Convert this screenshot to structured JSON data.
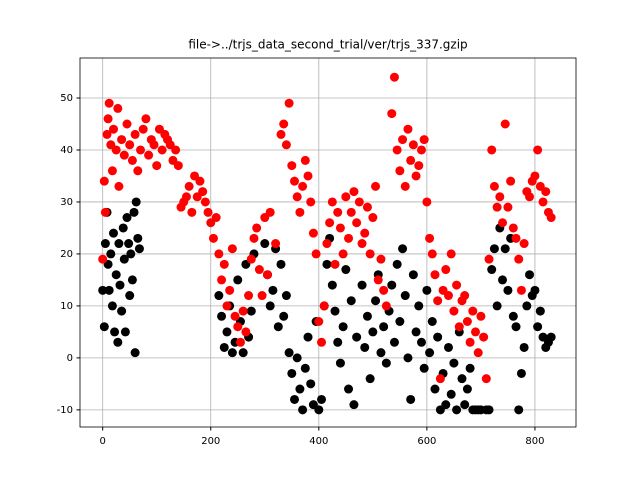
{
  "chart_data": {
    "type": "scatter",
    "title": "file->../trjs_data_second_trial/ver/trjs_337.gzip",
    "xlim": [
      -42,
      876
    ],
    "ylim": [
      -13.3,
      57.7
    ],
    "xticks": [
      0,
      200,
      400,
      600,
      800
    ],
    "yticks": [
      -10,
      0,
      10,
      20,
      30,
      40,
      50
    ],
    "grid": true,
    "series": [
      {
        "color": "#000000",
        "x": [
          0,
          3,
          5,
          8,
          10,
          12,
          15,
          18,
          20,
          22,
          25,
          28,
          30,
          32,
          35,
          38,
          40,
          42,
          45,
          48,
          50,
          52,
          55,
          58,
          60,
          62,
          65,
          68,
          215,
          220,
          225,
          230,
          235,
          240,
          245,
          250,
          255,
          260,
          265,
          270,
          275,
          280,
          300,
          305,
          310,
          315,
          320,
          325,
          330,
          335,
          340,
          345,
          350,
          355,
          360,
          365,
          370,
          375,
          380,
          385,
          390,
          395,
          400,
          405,
          410,
          415,
          420,
          425,
          430,
          435,
          440,
          445,
          450,
          455,
          460,
          465,
          470,
          480,
          485,
          490,
          495,
          500,
          505,
          510,
          515,
          520,
          525,
          530,
          535,
          540,
          545,
          550,
          555,
          560,
          565,
          570,
          575,
          580,
          585,
          590,
          595,
          600,
          605,
          610,
          615,
          620,
          625,
          630,
          635,
          640,
          645,
          650,
          655,
          660,
          665,
          670,
          675,
          680,
          685,
          690,
          695,
          700,
          710,
          715,
          720,
          725,
          730,
          735,
          740,
          745,
          750,
          755,
          760,
          765,
          770,
          775,
          780,
          785,
          790,
          795,
          800,
          805,
          810,
          815,
          820,
          825,
          830
        ],
        "values": [
          13,
          6,
          22,
          28,
          18,
          13,
          20,
          10,
          24,
          5,
          16,
          3,
          22,
          14,
          9,
          25,
          19,
          5,
          27,
          22,
          12,
          20,
          15,
          28,
          1,
          30,
          23,
          21,
          12,
          8,
          2,
          5,
          10,
          1,
          3,
          15,
          7,
          1,
          18,
          4,
          9,
          20,
          22,
          16,
          10,
          13,
          21,
          6,
          18,
          8,
          12,
          1,
          -3,
          -8,
          0,
          -6,
          -10,
          -2,
          4,
          -5,
          -9,
          7,
          -10,
          -8,
          10,
          18,
          23,
          14,
          9,
          3,
          -1,
          6,
          17,
          -6,
          11,
          -9,
          4,
          14,
          2,
          8,
          -4,
          5,
          11,
          16,
          1,
          6,
          -1,
          9,
          14,
          3,
          18,
          7,
          21,
          12,
          0,
          -8,
          16,
          5,
          10,
          3,
          -2,
          13,
          1,
          7,
          -6,
          4,
          -10,
          -3,
          -9,
          2,
          -7,
          -1,
          -10,
          5,
          -4,
          -9,
          -6,
          -2,
          -10,
          -10,
          -10,
          -10,
          -10,
          -10,
          17,
          21,
          10,
          25,
          15,
          21,
          13,
          23,
          8,
          6,
          -10,
          -3,
          2,
          10,
          16,
          12,
          13,
          6,
          9,
          4,
          2,
          3,
          4
        ]
      },
      {
        "color": "#ff0000",
        "x": [
          0,
          3,
          5,
          8,
          10,
          12,
          15,
          18,
          20,
          25,
          28,
          30,
          35,
          40,
          45,
          50,
          55,
          60,
          65,
          70,
          75,
          80,
          85,
          90,
          95,
          100,
          105,
          110,
          115,
          120,
          125,
          130,
          135,
          140,
          145,
          150,
          155,
          160,
          165,
          170,
          175,
          180,
          185,
          190,
          195,
          200,
          205,
          210,
          215,
          220,
          225,
          230,
          235,
          240,
          245,
          250,
          255,
          260,
          265,
          270,
          275,
          280,
          285,
          290,
          295,
          300,
          305,
          310,
          320,
          330,
          335,
          340,
          345,
          350,
          355,
          360,
          365,
          370,
          375,
          380,
          385,
          390,
          395,
          400,
          405,
          410,
          415,
          420,
          425,
          430,
          435,
          440,
          445,
          450,
          455,
          460,
          465,
          470,
          475,
          480,
          485,
          490,
          495,
          500,
          505,
          510,
          515,
          520,
          525,
          535,
          540,
          545,
          550,
          555,
          560,
          565,
          570,
          575,
          580,
          585,
          590,
          595,
          600,
          605,
          610,
          615,
          620,
          625,
          630,
          635,
          640,
          645,
          650,
          655,
          660,
          665,
          670,
          675,
          680,
          685,
          690,
          695,
          700,
          705,
          710,
          715,
          720,
          725,
          730,
          735,
          740,
          745,
          750,
          755,
          760,
          765,
          770,
          775,
          780,
          785,
          790,
          795,
          800,
          805,
          810,
          815,
          820,
          825,
          830
        ],
        "values": [
          19,
          34,
          28,
          43,
          46,
          49,
          41,
          36,
          44,
          40,
          48,
          33,
          42,
          39,
          45,
          41,
          38,
          43,
          36,
          40,
          44,
          46,
          39,
          42,
          41,
          37,
          44,
          40,
          43,
          42,
          41,
          38,
          40,
          37,
          29,
          30,
          31,
          33,
          28,
          35,
          31,
          34,
          32,
          30,
          28,
          26,
          23,
          27,
          20,
          15,
          18,
          10,
          13,
          21,
          8,
          6,
          3,
          9,
          5,
          12,
          19,
          23,
          25,
          17,
          12,
          27,
          16,
          28,
          22,
          43,
          45,
          41,
          49,
          37,
          34,
          31,
          28,
          33,
          38,
          35,
          30,
          24,
          20,
          7,
          3,
          10,
          22,
          26,
          30,
          18,
          28,
          25,
          20,
          31,
          23,
          28,
          32,
          26,
          30,
          22,
          24,
          29,
          20,
          27,
          33,
          15,
          19,
          13,
          10,
          47,
          54,
          40,
          36,
          42,
          33,
          44,
          38,
          41,
          35,
          37,
          40,
          42,
          30,
          23,
          20,
          16,
          11,
          -4,
          13,
          17,
          12,
          20,
          9,
          14,
          6,
          11,
          12,
          7,
          3,
          9,
          5,
          1,
          8,
          4,
          -4,
          19,
          40,
          33,
          29,
          31,
          26,
          45,
          29,
          34,
          25,
          23,
          19,
          13,
          22,
          32,
          31,
          34,
          35,
          40,
          33,
          30,
          32,
          28,
          27
        ]
      }
    ]
  }
}
